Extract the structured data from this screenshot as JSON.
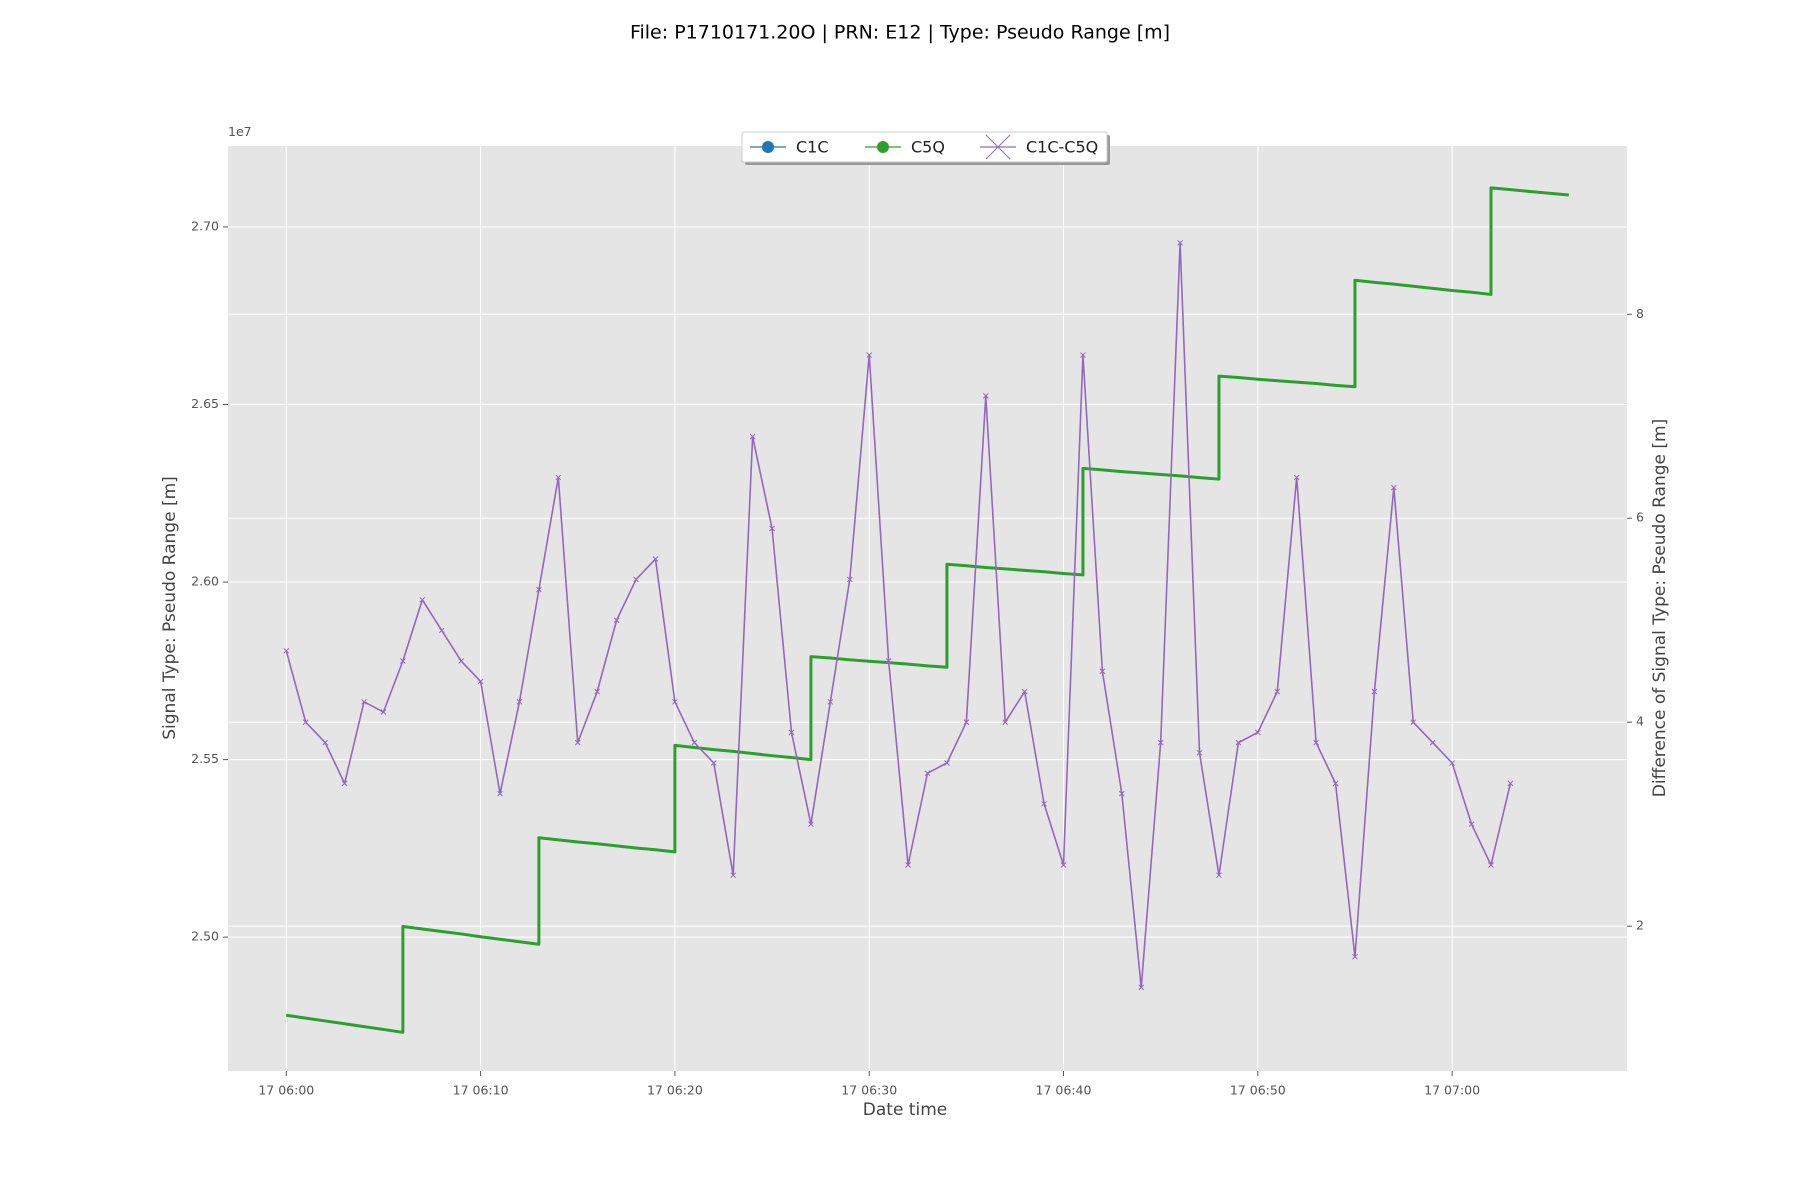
{
  "chart_data": {
    "type": "line",
    "title": "File: P1710171.20O | PRN: E12 | Type: Pseudo Range [m]",
    "xlabel": "Date time",
    "ylabel": "Signal Type:  Pseudo Range [m]",
    "y2label": "Difference of Signal Type: Pseudo Range [m]",
    "y_offset_label": "1e7",
    "xlim": [
      "17 05:57",
      "17 07:09"
    ],
    "xticks": [
      "17 06:00",
      "17 06:10",
      "17 06:20",
      "17 06:30",
      "17 06:40",
      "17 06:50",
      "17 07:00"
    ],
    "ylim": [
      2.4623,
      2.7228
    ],
    "yticks": [
      {
        "value": 2.5,
        "label": "2.50"
      },
      2.55,
      {
        "value": 2.6,
        "label": "2.60"
      },
      2.65,
      {
        "value": 2.7,
        "label": "2.70"
      }
    ],
    "y2lim": [
      0.58,
      9.65
    ],
    "y2ticks": [
      2,
      4,
      6,
      8
    ],
    "grid": true,
    "legend": "upper center",
    "series": [
      {
        "name": "C1C",
        "color": "#1f77b4",
        "marker": "o",
        "x": [
          "17 06:00",
          "17 06:01",
          "17 06:02",
          "17 06:03",
          "17 06:04",
          "17 06:05",
          "17 06:06",
          "17 06:06",
          "17 06:07",
          "17 06:08",
          "17 06:09",
          "17 06:10",
          "17 06:11",
          "17 06:12",
          "17 06:13",
          "17 06:13",
          "17 06:14",
          "17 06:15",
          "17 06:16",
          "17 06:17",
          "17 06:18",
          "17 06:19",
          "17 06:20",
          "17 06:20",
          "17 06:21",
          "17 06:22",
          "17 06:23",
          "17 06:24",
          "17 06:25",
          "17 06:26",
          "17 06:27",
          "17 06:27",
          "17 06:28",
          "17 06:29",
          "17 06:30",
          "17 06:31",
          "17 06:32",
          "17 06:33",
          "17 06:34",
          "17 06:34",
          "17 06:35",
          "17 06:36",
          "17 06:37",
          "17 06:38",
          "17 06:39",
          "17 06:40",
          "17 06:41",
          "17 06:41",
          "17 06:42",
          "17 06:43",
          "17 06:44",
          "17 06:45",
          "17 06:46",
          "17 06:47",
          "17 06:48",
          "17 06:48",
          "17 06:49",
          "17 06:50",
          "17 06:51",
          "17 06:52",
          "17 06:53",
          "17 06:54",
          "17 06:55",
          "17 06:55",
          "17 06:56",
          "17 06:57",
          "17 06:58",
          "17 06:59",
          "17 07:00",
          "17 07:01",
          "17 07:02",
          "17 07:02",
          "17 07:03",
          "17 07:04",
          "17 07:05",
          "17 07:06"
        ],
        "values": [
          2.478,
          2.4772,
          2.4764,
          2.4756,
          2.4748,
          2.474,
          2.4732,
          2.503,
          2.5023,
          2.5016,
          2.5009,
          2.5001,
          2.4994,
          2.4987,
          2.498,
          2.528,
          2.5274,
          2.5268,
          2.5263,
          2.5257,
          2.5251,
          2.5246,
          2.524,
          2.554,
          2.5534,
          2.5528,
          2.5523,
          2.5517,
          2.5511,
          2.5506,
          2.55,
          2.579,
          2.5786,
          2.5781,
          2.5777,
          2.5773,
          2.5769,
          2.5764,
          2.576,
          2.605,
          2.6046,
          2.6041,
          2.6037,
          2.6033,
          2.6029,
          2.6024,
          2.602,
          2.632,
          2.6316,
          2.6311,
          2.6307,
          2.6303,
          2.6299,
          2.6294,
          2.629,
          2.658,
          2.6576,
          2.6571,
          2.6567,
          2.6563,
          2.6559,
          2.6554,
          2.655,
          2.685,
          2.6844,
          2.6839,
          2.6833,
          2.6827,
          2.6821,
          2.6816,
          2.681,
          2.711,
          2.7105,
          2.71,
          2.7095,
          2.709
        ]
      },
      {
        "name": "C5Q",
        "color": "#2ca02c",
        "marker": "o",
        "x": [
          "17 06:00",
          "17 06:01",
          "17 06:02",
          "17 06:03",
          "17 06:04",
          "17 06:05",
          "17 06:06",
          "17 06:06",
          "17 06:07",
          "17 06:08",
          "17 06:09",
          "17 06:10",
          "17 06:11",
          "17 06:12",
          "17 06:13",
          "17 06:13",
          "17 06:14",
          "17 06:15",
          "17 06:16",
          "17 06:17",
          "17 06:18",
          "17 06:19",
          "17 06:20",
          "17 06:20",
          "17 06:21",
          "17 06:22",
          "17 06:23",
          "17 06:24",
          "17 06:25",
          "17 06:26",
          "17 06:27",
          "17 06:27",
          "17 06:28",
          "17 06:29",
          "17 06:30",
          "17 06:31",
          "17 06:32",
          "17 06:33",
          "17 06:34",
          "17 06:34",
          "17 06:35",
          "17 06:36",
          "17 06:37",
          "17 06:38",
          "17 06:39",
          "17 06:40",
          "17 06:41",
          "17 06:41",
          "17 06:42",
          "17 06:43",
          "17 06:44",
          "17 06:45",
          "17 06:46",
          "17 06:47",
          "17 06:48",
          "17 06:48",
          "17 06:49",
          "17 06:50",
          "17 06:51",
          "17 06:52",
          "17 06:53",
          "17 06:54",
          "17 06:55",
          "17 06:55",
          "17 06:56",
          "17 06:57",
          "17 06:58",
          "17 06:59",
          "17 07:00",
          "17 07:01",
          "17 07:02",
          "17 07:02",
          "17 07:03",
          "17 07:04",
          "17 07:05",
          "17 07:06"
        ],
        "values": [
          2.478,
          2.4772,
          2.4764,
          2.4756,
          2.4748,
          2.474,
          2.4732,
          2.503,
          2.5023,
          2.5016,
          2.5009,
          2.5001,
          2.4994,
          2.4987,
          2.498,
          2.528,
          2.5274,
          2.5268,
          2.5263,
          2.5257,
          2.5251,
          2.5246,
          2.524,
          2.554,
          2.5534,
          2.5528,
          2.5523,
          2.5517,
          2.5511,
          2.5506,
          2.55,
          2.579,
          2.5786,
          2.5781,
          2.5777,
          2.5773,
          2.5769,
          2.5764,
          2.576,
          2.605,
          2.6046,
          2.6041,
          2.6037,
          2.6033,
          2.6029,
          2.6024,
          2.602,
          2.632,
          2.6316,
          2.6311,
          2.6307,
          2.6303,
          2.6299,
          2.6294,
          2.629,
          2.658,
          2.6576,
          2.6571,
          2.6567,
          2.6563,
          2.6559,
          2.6554,
          2.655,
          2.685,
          2.6844,
          2.6839,
          2.6833,
          2.6827,
          2.6821,
          2.6816,
          2.681,
          2.711,
          2.7105,
          2.71,
          2.7095,
          2.709
        ]
      },
      {
        "name": "C1C-C5Q",
        "color": "#9467bd",
        "marker": "x",
        "axis": "y2",
        "x": [
          "17 06:00",
          "17 06:01",
          "17 06:02",
          "17 06:03",
          "17 06:04",
          "17 06:05",
          "17 06:06",
          "17 06:07",
          "17 06:08",
          "17 06:09",
          "17 06:10",
          "17 06:11",
          "17 06:12",
          "17 06:13",
          "17 06:14",
          "17 06:15",
          "17 06:16",
          "17 06:17",
          "17 06:18",
          "17 06:19",
          "17 06:20",
          "17 06:21",
          "17 06:22",
          "17 06:23",
          "17 06:24",
          "17 06:25",
          "17 06:26",
          "17 06:27",
          "17 06:28",
          "17 06:29",
          "17 06:30",
          "17 06:31",
          "17 06:32",
          "17 06:33",
          "17 06:34",
          "17 06:35",
          "17 06:36",
          "17 06:37",
          "17 06:38",
          "17 06:39",
          "17 06:40",
          "17 06:41",
          "17 06:42",
          "17 06:43",
          "17 06:44",
          "17 06:45",
          "17 06:46",
          "17 06:47",
          "17 06:48",
          "17 06:49",
          "17 06:50",
          "17 06:51",
          "17 06:52",
          "17 06:53",
          "17 06:54",
          "17 06:55",
          "17 06:56",
          "17 06:57",
          "17 06:58",
          "17 06:59",
          "17 07:00",
          "17 07:01",
          "17 07:02",
          "17 07:03"
        ],
        "values": [
          4.7,
          4.0,
          3.8,
          3.4,
          4.2,
          4.1,
          4.6,
          5.2,
          4.9,
          4.6,
          4.4,
          3.3,
          4.2,
          5.3,
          6.4,
          3.8,
          4.3,
          5.0,
          5.4,
          5.6,
          4.2,
          3.8,
          3.6,
          2.5,
          6.8,
          5.9,
          3.9,
          3.0,
          4.2,
          5.4,
          7.6,
          4.6,
          2.6,
          3.5,
          3.6,
          4.0,
          7.2,
          4.0,
          4.3,
          3.2,
          2.6,
          7.6,
          4.5,
          3.3,
          1.4,
          3.8,
          8.7,
          3.7,
          2.5,
          3.8,
          3.9,
          4.3,
          6.4,
          3.8,
          3.4,
          1.7,
          4.3,
          6.3,
          4.0,
          3.8,
          3.6,
          3.0,
          2.6,
          3.4
        ]
      }
    ]
  }
}
